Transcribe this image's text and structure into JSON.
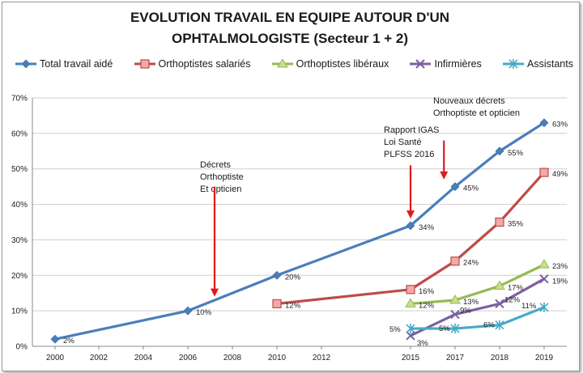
{
  "chart_data": {
    "type": "line",
    "title_line1": "EVOLUTION TRAVAIL EN EQUIPE AUTOUR D'UN",
    "title_line2": "OPHTALMOLOGISTE (Secteur 1 + 2)",
    "x_ticks": [
      "2000",
      "2002",
      "2004",
      "2006",
      "2008",
      "2010",
      "2012",
      "2015",
      "2017",
      "2018",
      "2019"
    ],
    "y_ticks": [
      "0%",
      "10%",
      "20%",
      "30%",
      "40%",
      "50%",
      "60%",
      "70%"
    ],
    "ylim": [
      0,
      70
    ],
    "series": [
      {
        "name": "Total travail aidé",
        "color": "#4a7ebb",
        "marker": "diamond",
        "points": [
          {
            "x": "2000",
            "y": 2,
            "label": "2%"
          },
          {
            "x": "2006",
            "y": 10,
            "label": "10%"
          },
          {
            "x": "2010",
            "y": 20,
            "label": "20%"
          },
          {
            "x": "2015",
            "y": 34,
            "label": "34%"
          },
          {
            "x": "2017",
            "y": 45,
            "label": "45%"
          },
          {
            "x": "2018",
            "y": 55,
            "label": "55%"
          },
          {
            "x": "2019",
            "y": 63,
            "label": "63%"
          }
        ]
      },
      {
        "name": "Orthoptistes salariés",
        "color": "#be4b48",
        "marker": "square",
        "points": [
          {
            "x": "2010",
            "y": 12,
            "label": "12%"
          },
          {
            "x": "2015",
            "y": 16,
            "label": "16%"
          },
          {
            "x": "2017",
            "y": 24,
            "label": "24%"
          },
          {
            "x": "2018",
            "y": 35,
            "label": "35%"
          },
          {
            "x": "2019",
            "y": 49,
            "label": "49%"
          }
        ]
      },
      {
        "name": "Orthoptistes libéraux",
        "color": "#98b954",
        "marker": "triangle",
        "points": [
          {
            "x": "2015",
            "y": 12,
            "label": "12%"
          },
          {
            "x": "2017",
            "y": 13,
            "label": "13%"
          },
          {
            "x": "2018",
            "y": 17,
            "label": "17%"
          },
          {
            "x": "2019",
            "y": 23,
            "label": "23%"
          }
        ]
      },
      {
        "name": "Infirmières",
        "color": "#7d60a0",
        "marker": "x",
        "points": [
          {
            "x": "2015",
            "y": 3,
            "label": "3%"
          },
          {
            "x": "2017",
            "y": 9,
            "label": "9%"
          },
          {
            "x": "2018",
            "y": 12,
            "label": "12%"
          },
          {
            "x": "2019",
            "y": 19,
            "label": "19%"
          }
        ]
      },
      {
        "name": "Assistants",
        "color": "#46aac5",
        "marker": "star",
        "points": [
          {
            "x": "2015",
            "y": 5,
            "label": "5%"
          },
          {
            "x": "2017",
            "y": 5,
            "label": "5%"
          },
          {
            "x": "2018",
            "y": 6,
            "label": "6%"
          },
          {
            "x": "2019",
            "y": 11,
            "label": "11%"
          }
        ]
      }
    ],
    "annotations": [
      {
        "lines": [
          "Décrets",
          "Orthoptiste",
          "Et opticien"
        ],
        "arrow_x": "2007.2",
        "arrow_y_from": 45,
        "arrow_y_to": 14
      },
      {
        "lines": [
          "Rapport IGAS",
          "Loi Santé",
          "PLFSS 2016"
        ],
        "arrow_x": "2015",
        "arrow_y_from": 51,
        "arrow_y_to": 36
      },
      {
        "lines": [
          "Nouveaux décrets",
          "Orthoptiste et opticien"
        ],
        "arrow_x": "2016.5",
        "arrow_y_from": 58,
        "arrow_y_to": 47
      }
    ],
    "arrow_color": "#e0191b"
  }
}
